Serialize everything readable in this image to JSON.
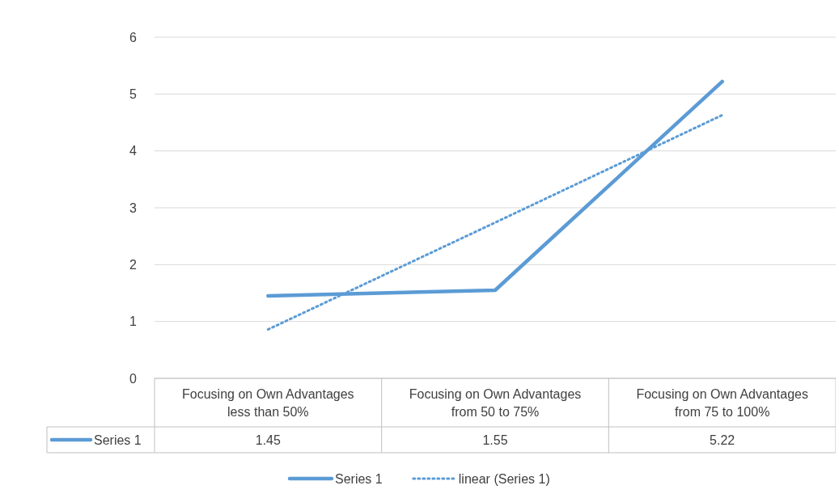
{
  "chart_data": {
    "type": "line",
    "categories": [
      "Focusing on Own Advantages less than 50%",
      "Focusing on Own Advantages from 50 to 75%",
      "Focusing on Own Advantages from 75 to 100%"
    ],
    "series": [
      {
        "name": "Series 1",
        "color": "#5b9bd5",
        "values": [
          1.45,
          1.55,
          5.22
        ],
        "value_labels": [
          "1.45",
          "1.55",
          "5.22"
        ],
        "line_style": "solid"
      },
      {
        "name": "linear (Series 1)",
        "color": "#5b9bd5",
        "values": [
          0.86,
          2.74,
          4.63
        ],
        "line_style": "dotted"
      }
    ],
    "ylim": [
      0,
      6
    ],
    "yticks": [
      0,
      1,
      2,
      3,
      4,
      5,
      6
    ],
    "grid": "y",
    "legend": "bottom",
    "marker": "none"
  }
}
